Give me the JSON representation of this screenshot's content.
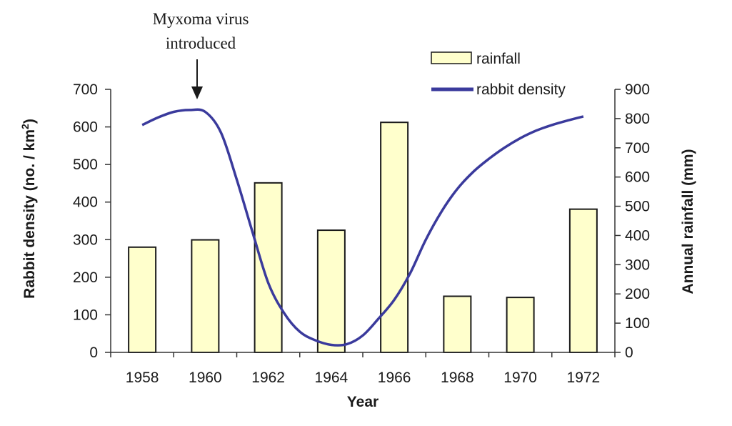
{
  "chart_data": {
    "type": "bar",
    "categories": [
      "1958",
      "1960",
      "1962",
      "1964",
      "1966",
      "1968",
      "1970",
      "1972"
    ],
    "series": [
      {
        "name": "rainfall",
        "type": "bar",
        "axis": "right",
        "color": "#ffffcc",
        "values": [
          360,
          385,
          580,
          418,
          787,
          192,
          188,
          490
        ]
      },
      {
        "name": "rabbit density",
        "type": "line",
        "axis": "left",
        "color": "#3a3a9c",
        "x": [
          1958,
          1958.5,
          1959,
          1959.5,
          1960,
          1960.5,
          1961,
          1961.5,
          1962,
          1962.5,
          1963,
          1963.5,
          1964,
          1964.5,
          1965,
          1965.5,
          1966,
          1966.5,
          1967,
          1967.5,
          1968,
          1968.5,
          1969,
          1969.5,
          1970,
          1970.5,
          1971,
          1971.5,
          1972
        ],
        "y": [
          605,
          625,
          640,
          645,
          640,
          585,
          460,
          320,
          185,
          105,
          55,
          32,
          20,
          22,
          45,
          90,
          140,
          210,
          300,
          375,
          435,
          480,
          515,
          545,
          570,
          590,
          605,
          617,
          628
        ]
      }
    ],
    "ylabel_left": "Rabbit density (no. / km",
    "ylabel_left_superscript": "2",
    "ylabel_left_suffix": ")",
    "ylabel_right": "Annual rainfall (mm)",
    "xlabel": "Year",
    "ylim_left": [
      0,
      700
    ],
    "ylim_right": [
      0,
      900
    ],
    "yticks_left": [
      "0",
      "100",
      "200",
      "300",
      "400",
      "500",
      "600",
      "700"
    ],
    "yticks_right": [
      "0",
      "100",
      "200",
      "300",
      "400",
      "500",
      "600",
      "700",
      "800",
      "900"
    ],
    "grid": false,
    "legend_position": "top-right",
    "annotation": {
      "lines": [
        "Myxoma virus",
        "introduced"
      ],
      "x": 1959.7
    }
  }
}
